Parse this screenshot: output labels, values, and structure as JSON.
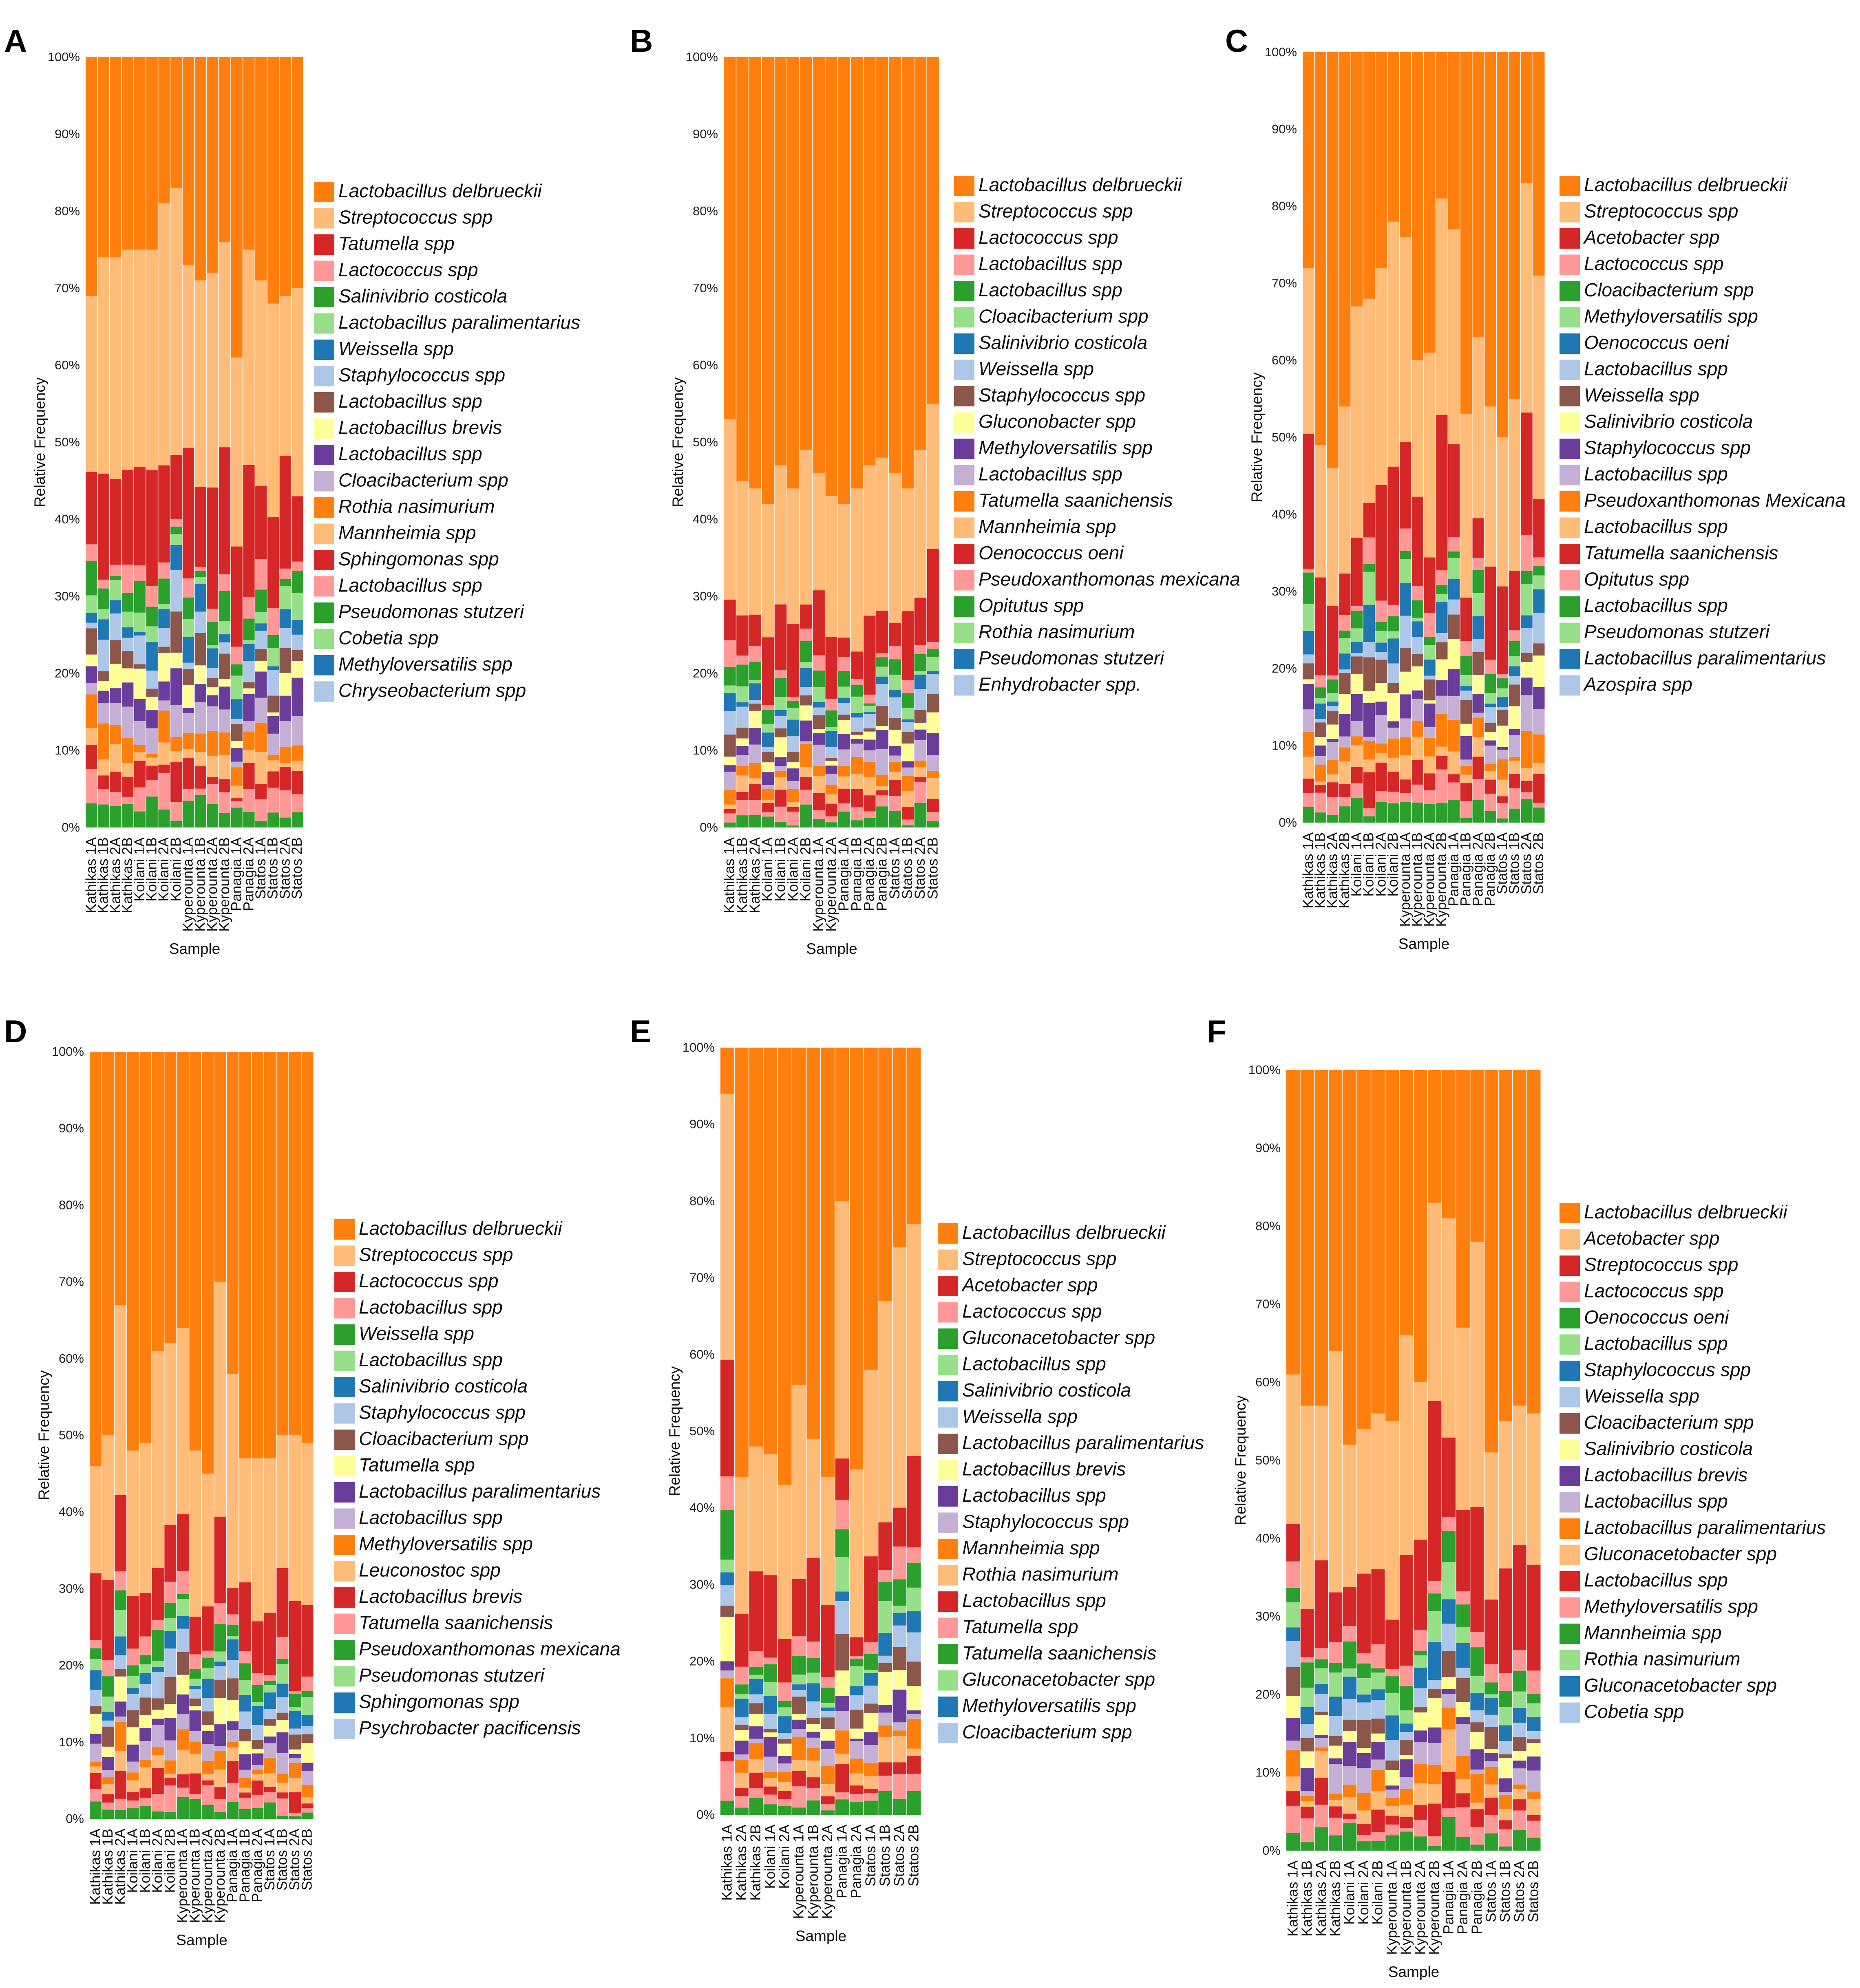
{
  "palette": [
    "#ff7f0e",
    "#ffbb78",
    "#d62728",
    "#ff9896",
    "#2ca02c",
    "#98df8a",
    "#1f77b4",
    "#aec7e8",
    "#8c564b",
    "#ffff99",
    "#6a3d9a",
    "#c5b0d5",
    "#ff7f0e",
    "#ffbb78",
    "#d62728",
    "#ff9896",
    "#2ca02c",
    "#98df8a",
    "#1f77b4",
    "#aec7e8"
  ],
  "y_ticks": [
    "0%",
    "10%",
    "20%",
    "30%",
    "40%",
    "50%",
    "60%",
    "70%",
    "80%",
    "90%",
    "100%"
  ],
  "chart_data": [
    {
      "panel": "A",
      "type": "stacked_bar",
      "xlabel": "Sample",
      "ylabel": "Relative Frequency",
      "ylim": [
        0,
        100
      ],
      "categories": [
        "Kathikas 1A",
        "Kathikas 1B",
        "Kathikas 2A",
        "Kathikas 2B",
        "Koilani 1A",
        "Koilani 1B",
        "Koilani 2A",
        "Koilani 2B",
        "Kyperounta 1A",
        "Kyperounta 1B",
        "Kyperounta 2A",
        "Kyperounta 2B",
        "Panagia 1A",
        "Panagia 2A",
        "Statos 1A",
        "Statos 1B",
        "Statos 2A",
        "Statos 2B"
      ],
      "top_segment_start": [
        69,
        74,
        74,
        75,
        75,
        75,
        81,
        83,
        73,
        71,
        72,
        76,
        61,
        75,
        71,
        68,
        69,
        70
      ],
      "legend": [
        "Lactobacillus delbrueckii",
        "Streptococcus spp",
        "Tatumella spp",
        "Lactococcus spp",
        "Salinivibrio costicola",
        "Lactobacillus paralimentarius",
        "Weissella spp",
        "Staphylococcus spp",
        "Lactobacillus spp",
        "Lactobacillus brevis",
        "Lactobacillus spp",
        "Cloacibacterium spp",
        "Rothia nasimurium",
        "Mannheimia spp",
        "Sphingomonas spp",
        "Lactobacillus spp",
        "Pseudomonas stutzeri",
        "Cobetia spp",
        "Methyloversatilis spp",
        "Chryseobacterium spp"
      ]
    },
    {
      "panel": "B",
      "type": "stacked_bar",
      "xlabel": "Sample",
      "ylabel": "Relative Frequency",
      "ylim": [
        0,
        100
      ],
      "categories": [
        "Kathikas 1A",
        "Kathikas 1B",
        "Kathikas 2A",
        "Koilani 1A",
        "Koilani 1B",
        "Koilani 2A",
        "Koilani 2B",
        "Kyperounta 1A",
        "Kyperounta 2A",
        "Panagia 1A",
        "Panagia 1B",
        "Panagia 2A",
        "Panagia 2B",
        "Statos 1A",
        "Statos 1B",
        "Statos 2A",
        "Statos 2B"
      ],
      "top_segment_start": [
        53,
        45,
        44,
        42,
        47,
        44,
        49,
        46,
        43,
        42,
        44,
        47,
        48,
        46,
        44,
        49,
        55
      ],
      "legend": [
        "Lactobacillus delbrueckii",
        "Streptococcus spp",
        "Lactococcus spp",
        "Lactobacillus spp",
        "Lactobacillus spp",
        "Cloacibacterium spp",
        "Salinivibrio costicola",
        "Weissella spp",
        "Staphylococcus spp",
        "Gluconobacter spp",
        "Methyloversatilis spp",
        "Lactobacillus spp",
        "Tatumella saanichensis",
        "Mannheimia spp",
        "Oenococcus oeni",
        "Pseudoxanthomonas mexicana",
        "Opitutus spp",
        "Rothia nasimurium",
        "Pseudomonas stutzeri",
        "Enhydrobacter spp."
      ]
    },
    {
      "panel": "C",
      "type": "stacked_bar",
      "xlabel": "Sample",
      "ylabel": "Relative Frequency",
      "ylim": [
        0,
        100
      ],
      "categories": [
        "Kathikas 1A",
        "Kathikas 1B",
        "Kathikas 2A",
        "Kathikas 2B",
        "Koilani 1A",
        "Koilani 1B",
        "Koilani 2A",
        "Koilani 2B",
        "Kyperounta 1A",
        "Kyperounta 1B",
        "Kyperounta 2A",
        "Kyperounta 2B",
        "Panagia 1A",
        "Panagia 1B",
        "Panagia 2A",
        "Panagia 2B",
        "Statos 1A",
        "Statos 1B",
        "Statos 2A",
        "Statos 2B"
      ],
      "top_segment_start": [
        72,
        49,
        46,
        54,
        67,
        68,
        72,
        78,
        76,
        60,
        61,
        81,
        77,
        53,
        63,
        54,
        50,
        55,
        83,
        71
      ],
      "legend": [
        "Lactobacillus delbrueckii",
        "Streptococcus spp",
        "Acetobacter spp",
        "Lactococcus spp",
        "Cloacibacterium spp",
        "Methyloversatilis spp",
        "Oenococcus oeni",
        "Lactobacillus spp",
        "Weissella spp",
        "Salinivibrio costicola",
        "Staphylococcus spp",
        "Lactobacillus spp",
        "Pseudoxanthomonas Mexicana",
        "Lactobacillus spp",
        "Tatumella saanichensis",
        "Opitutus spp",
        "Lactobacillus spp",
        "Pseudomonas stutzeri",
        "Lactobacillus paralimentarius",
        "Azospira spp"
      ]
    },
    {
      "panel": "D",
      "type": "stacked_bar",
      "xlabel": "Sample",
      "ylabel": "Relative Frequency",
      "ylim": [
        0,
        100
      ],
      "categories": [
        "Kathikas 1A",
        "Kathikas 1B",
        "Kathikas 2A",
        "Koilani 1A",
        "Koilani 1B",
        "Koilani 2A",
        "Koilani 2B",
        "Kyperounta 1A",
        "Kyperounta 1B",
        "Kyperounta 2A",
        "Kyperounta 2B",
        "Panagia 1A",
        "Panagia 1B",
        "Panagia 2A",
        "Statos 1A",
        "Statos 1B",
        "Statos 2A",
        "Statos 2B"
      ],
      "top_segment_start": [
        46,
        50,
        67,
        48,
        49,
        61,
        62,
        64,
        48,
        45,
        70,
        58,
        47,
        47,
        47,
        50,
        50,
        49
      ],
      "legend": [
        "Lactobacillus delbrueckii",
        "Streptococcus spp",
        "Lactococcus spp",
        "Lactobacillus spp",
        "Weissella spp",
        "Lactobacillus spp",
        "Salinivibrio costicola",
        "Staphylococcus spp",
        "Cloacibacterium spp",
        "Tatumella spp",
        "Lactobacillus paralimentarius",
        "Lactobacillus spp",
        "Methyloversatilis spp",
        "Leuconostoc spp",
        "Lactobacillus brevis",
        "Tatumella saanichensis",
        "Pseudoxanthomonas mexicana",
        "Pseudomonas stutzeri",
        "Sphingomonas spp",
        "Psychrobacter pacificensis"
      ]
    },
    {
      "panel": "E",
      "type": "stacked_bar",
      "xlabel": "Sample",
      "ylabel": "Relative Frequency",
      "ylim": [
        0,
        100
      ],
      "categories": [
        "Kathikas 1A",
        "Kathikas 2A",
        "Kathikas 2B",
        "Koilani 1A",
        "Koilani 2A",
        "Kyperounta 1A",
        "Kyperounta 1B",
        "Kyperounta 2A",
        "Panagia 1A",
        "Panagia 2A",
        "Statos 1A",
        "Statos 1B",
        "Statos 2A",
        "Statos 2B"
      ],
      "top_segment_start": [
        94,
        44,
        48,
        47,
        43,
        56,
        49,
        44,
        80,
        45,
        58,
        67,
        74,
        77
      ],
      "legend": [
        "Lactobacillus delbrueckii",
        "Streptococcus spp",
        "Acetobacter spp",
        "Lactococcus spp",
        "Gluconacetobacter spp",
        "Lactobacillus spp",
        "Salinivibrio costicola",
        "Weissella spp",
        "Lactobacillus paralimentarius",
        "Lactobacillus brevis",
        "Lactobacillus spp",
        "Staphylococcus spp",
        "Mannheimia spp",
        "Rothia nasimurium",
        "Lactobacillus spp",
        "Tatumella spp",
        "Tatumella saanichensis",
        "Gluconacetobacter spp",
        "Methyloversatilis spp",
        "Cloacibacterium spp"
      ]
    },
    {
      "panel": "F",
      "type": "stacked_bar",
      "xlabel": "Sample",
      "ylabel": "Relative Frequency",
      "ylim": [
        0,
        100
      ],
      "categories": [
        "Kathikas 1A",
        "Kathikas 1B",
        "Kathikas 2A",
        "Kathikas 2B",
        "Koilani 1A",
        "Koilani 2A",
        "Koilani 2B",
        "Kyperounta 1A",
        "Kyperounta 1B",
        "Kyperounta 2A",
        "Kyperounta 2B",
        "Panagia 1A",
        "Panagia 2A",
        "Panagia 2B",
        "Statos 1A",
        "Statos 1B",
        "Statos 2A",
        "Statos 2B"
      ],
      "top_segment_start": [
        61,
        57,
        57,
        64,
        52,
        54,
        56,
        55,
        66,
        60,
        83,
        81,
        67,
        78,
        51,
        55,
        57,
        56
      ],
      "legend": [
        "Lactobacillus delbrueckii",
        "Acetobacter spp",
        "Streptococcus spp",
        "Lactococcus spp",
        "Oenococcus oeni",
        "Lactobacillus spp",
        "Staphylococcus spp",
        "Weissella spp",
        "Cloacibacterium spp",
        "Salinivibrio costicola",
        "Lactobacillus brevis",
        "Lactobacillus spp",
        "Lactobacillus paralimentarius",
        "Gluconacetobacter spp",
        "Lactobacillus spp",
        "Methyloversatilis spp",
        "Mannheimia spp",
        "Rothia nasimurium",
        "Gluconacetobacter spp",
        "Cobetia spp"
      ]
    }
  ]
}
